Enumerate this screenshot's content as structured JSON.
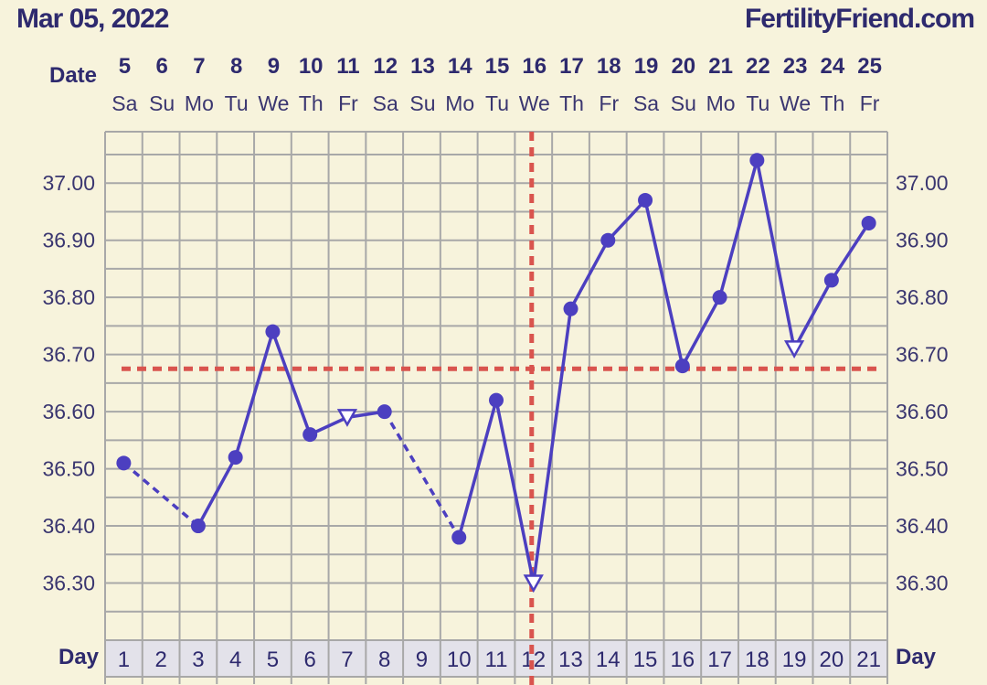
{
  "header": {
    "date": "Mar 05, 2022",
    "site": "FertilityFriend.com"
  },
  "colors": {
    "background": "#f7f3dc",
    "grid": "#a8a8a8",
    "line": "#4c3fc0",
    "coverline": "#d9544e",
    "day_row_bg": "#e3e2ea",
    "text": "#2e2a6e"
  },
  "chart_data": {
    "type": "line",
    "title": "",
    "xlabel": "Day",
    "ylabel": "",
    "date_row_label": "Date",
    "cycle_days": [
      1,
      2,
      3,
      4,
      5,
      6,
      7,
      8,
      9,
      10,
      11,
      12,
      13,
      14,
      15,
      16,
      17,
      18,
      19,
      20,
      21
    ],
    "dates": [
      "5",
      "6",
      "7",
      "8",
      "9",
      "10",
      "11",
      "12",
      "13",
      "14",
      "15",
      "16",
      "17",
      "18",
      "19",
      "20",
      "21",
      "22",
      "23",
      "24",
      "25"
    ],
    "weekdays": [
      "Sa",
      "Su",
      "Mo",
      "Tu",
      "We",
      "Th",
      "Fr",
      "Sa",
      "Su",
      "Mo",
      "Tu",
      "We",
      "Th",
      "Fr",
      "Sa",
      "Su",
      "Mo",
      "Tu",
      "We",
      "Th",
      "Fr"
    ],
    "y_ticks": [
      "36.30",
      "36.40",
      "36.50",
      "36.60",
      "36.70",
      "36.80",
      "36.90",
      "37.00"
    ],
    "ylim": [
      36.2,
      37.09
    ],
    "grid": true,
    "temperatures": [
      36.51,
      null,
      36.4,
      36.52,
      36.74,
      36.56,
      36.59,
      36.6,
      null,
      36.38,
      36.62,
      36.3,
      36.78,
      36.9,
      36.97,
      36.68,
      36.8,
      37.04,
      36.71,
      36.83,
      36.93
    ],
    "open_markers_days": [
      7,
      12,
      19
    ],
    "dashed_segments": [
      [
        1,
        3
      ],
      [
        8,
        10
      ]
    ],
    "coverline": 36.675,
    "ovulation_day": 12
  }
}
